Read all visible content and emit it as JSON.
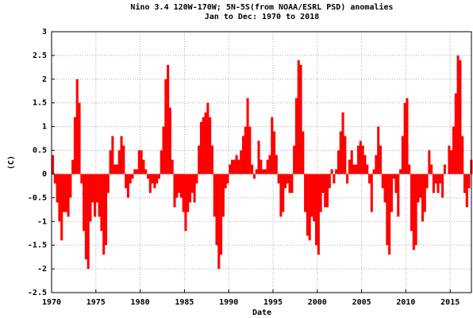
{
  "chart_data": {
    "type": "bar",
    "title": "Nino 3.4 120W-170W; 5N-5S(from NOAA/ESRL PSD) anomalies",
    "subtitle": "Jan to Dec: 1970 to 2018",
    "x_label": "Date",
    "y_label": "(C)",
    "color": "#ff0000",
    "grid": true,
    "xlim": [
      1970,
      2017.4
    ],
    "xticks": [
      1970,
      1975,
      1980,
      1985,
      1990,
      1995,
      2000,
      2005,
      2010,
      2015
    ],
    "ylim": [
      -2.5,
      3
    ],
    "yticks": [
      -2.5,
      -2,
      -1.5,
      -1,
      -0.5,
      0,
      0.5,
      1,
      1.5,
      2,
      2.5,
      3
    ],
    "x": [
      1970,
      1970.25,
      1970.5,
      1970.75,
      1971,
      1971.25,
      1971.5,
      1971.75,
      1972,
      1972.25,
      1972.5,
      1972.75,
      1973,
      1973.25,
      1973.5,
      1973.75,
      1974,
      1974.25,
      1974.5,
      1974.75,
      1975,
      1975.25,
      1975.5,
      1975.75,
      1976,
      1976.25,
      1976.5,
      1976.75,
      1977,
      1977.25,
      1977.5,
      1977.75,
      1978,
      1978.25,
      1978.5,
      1978.75,
      1979,
      1979.25,
      1979.5,
      1979.75,
      1980,
      1980.25,
      1980.5,
      1980.75,
      1981,
      1981.25,
      1981.5,
      1981.75,
      1982,
      1982.25,
      1982.5,
      1982.75,
      1983,
      1983.25,
      1983.5,
      1983.75,
      1984,
      1984.25,
      1984.5,
      1984.75,
      1985,
      1985.25,
      1985.5,
      1985.75,
      1986,
      1986.25,
      1986.5,
      1986.75,
      1987,
      1987.25,
      1987.5,
      1987.75,
      1988,
      1988.25,
      1988.5,
      1988.75,
      1989,
      1989.25,
      1989.5,
      1989.75,
      1990,
      1990.25,
      1990.5,
      1990.75,
      1991,
      1991.25,
      1991.5,
      1991.75,
      1992,
      1992.25,
      1992.5,
      1992.75,
      1993,
      1993.25,
      1993.5,
      1993.75,
      1994,
      1994.25,
      1994.5,
      1994.75,
      1995,
      1995.25,
      1995.5,
      1995.75,
      1996,
      1996.25,
      1996.5,
      1996.75,
      1997,
      1997.25,
      1997.5,
      1997.75,
      1998,
      1998.25,
      1998.5,
      1998.75,
      1999,
      1999.25,
      1999.5,
      1999.75,
      2000,
      2000.25,
      2000.5,
      2000.75,
      2001,
      2001.25,
      2001.5,
      2001.75,
      2002,
      2002.25,
      2002.5,
      2002.75,
      2003,
      2003.25,
      2003.5,
      2003.75,
      2004,
      2004.25,
      2004.5,
      2004.75,
      2005,
      2005.25,
      2005.5,
      2005.75,
      2006,
      2006.25,
      2006.5,
      2006.75,
      2007,
      2007.25,
      2007.5,
      2007.75,
      2008,
      2008.25,
      2008.5,
      2008.75,
      2009,
      2009.25,
      2009.5,
      2009.75,
      2010,
      2010.25,
      2010.5,
      2010.75,
      2011,
      2011.25,
      2011.5,
      2011.75,
      2012,
      2012.25,
      2012.5,
      2012.75,
      2013,
      2013.25,
      2013.5,
      2013.75,
      2014,
      2014.25,
      2014.5,
      2014.75,
      2015,
      2015.25,
      2015.5,
      2015.75,
      2016,
      2016.25,
      2016.5,
      2016.75,
      2017,
      2017.25
    ],
    "values": [
      0.4,
      -0.2,
      -0.6,
      -1.0,
      -1.4,
      -0.8,
      -0.8,
      -0.9,
      -0.5,
      0.3,
      1.2,
      2.0,
      1.5,
      -0.2,
      -1.2,
      -1.8,
      -2.0,
      -1.0,
      -0.6,
      -0.9,
      -0.6,
      -0.9,
      -1.2,
      -1.7,
      -1.5,
      -0.4,
      0.5,
      0.8,
      0.2,
      0.2,
      0.5,
      0.8,
      0.6,
      -0.3,
      -0.5,
      -0.2,
      -0.1,
      0.1,
      0.1,
      0.5,
      0.5,
      0.3,
      0.1,
      -0.1,
      -0.4,
      -0.2,
      -0.3,
      -0.2,
      -0.1,
      0.5,
      1.0,
      2.0,
      2.3,
      1.4,
      0.3,
      -0.7,
      -0.5,
      -0.4,
      -0.5,
      -0.8,
      -1.2,
      -0.8,
      -0.6,
      -0.4,
      -0.6,
      -0.2,
      0.6,
      1.1,
      1.2,
      1.3,
      1.5,
      1.2,
      0.6,
      -0.9,
      -1.5,
      -2.0,
      -1.7,
      -0.9,
      -0.3,
      -0.2,
      0.2,
      0.3,
      0.3,
      0.4,
      0.3,
      0.5,
      0.8,
      1.0,
      1.6,
      1.0,
      0.2,
      -0.1,
      0.1,
      0.7,
      0.3,
      0.1,
      0.1,
      0.3,
      0.4,
      1.2,
      0.9,
      0.4,
      -0.2,
      -0.9,
      -0.8,
      -0.3,
      -0.2,
      -0.4,
      -0.4,
      0.6,
      1.6,
      2.4,
      2.3,
      0.9,
      -0.8,
      -1.3,
      -1.4,
      -0.9,
      -1.0,
      -1.5,
      -1.7,
      -0.8,
      -0.4,
      -0.7,
      -0.7,
      -0.3,
      0.1,
      -0.2,
      0.1,
      0.5,
      0.9,
      1.3,
      0.8,
      -0.2,
      0.3,
      0.5,
      0.2,
      0.2,
      0.6,
      0.7,
      0.6,
      0.4,
      0.2,
      -0.2,
      -0.8,
      0.1,
      0.4,
      1.0,
      0.6,
      -0.3,
      -0.6,
      -1.5,
      -1.7,
      -0.8,
      -0.1,
      -0.4,
      -0.9,
      0.1,
      0.8,
      1.5,
      1.6,
      0.2,
      -1.2,
      -1.6,
      -1.5,
      -0.6,
      -0.5,
      -1.0,
      -0.8,
      -0.3,
      0.5,
      0.2,
      -0.4,
      -0.2,
      -0.4,
      -0.2,
      -0.5,
      0.2,
      0.0,
      0.6,
      0.5,
      1.0,
      1.7,
      2.5,
      2.4,
      0.8,
      -0.4,
      -0.7,
      -0.3,
      0.3
    ]
  }
}
